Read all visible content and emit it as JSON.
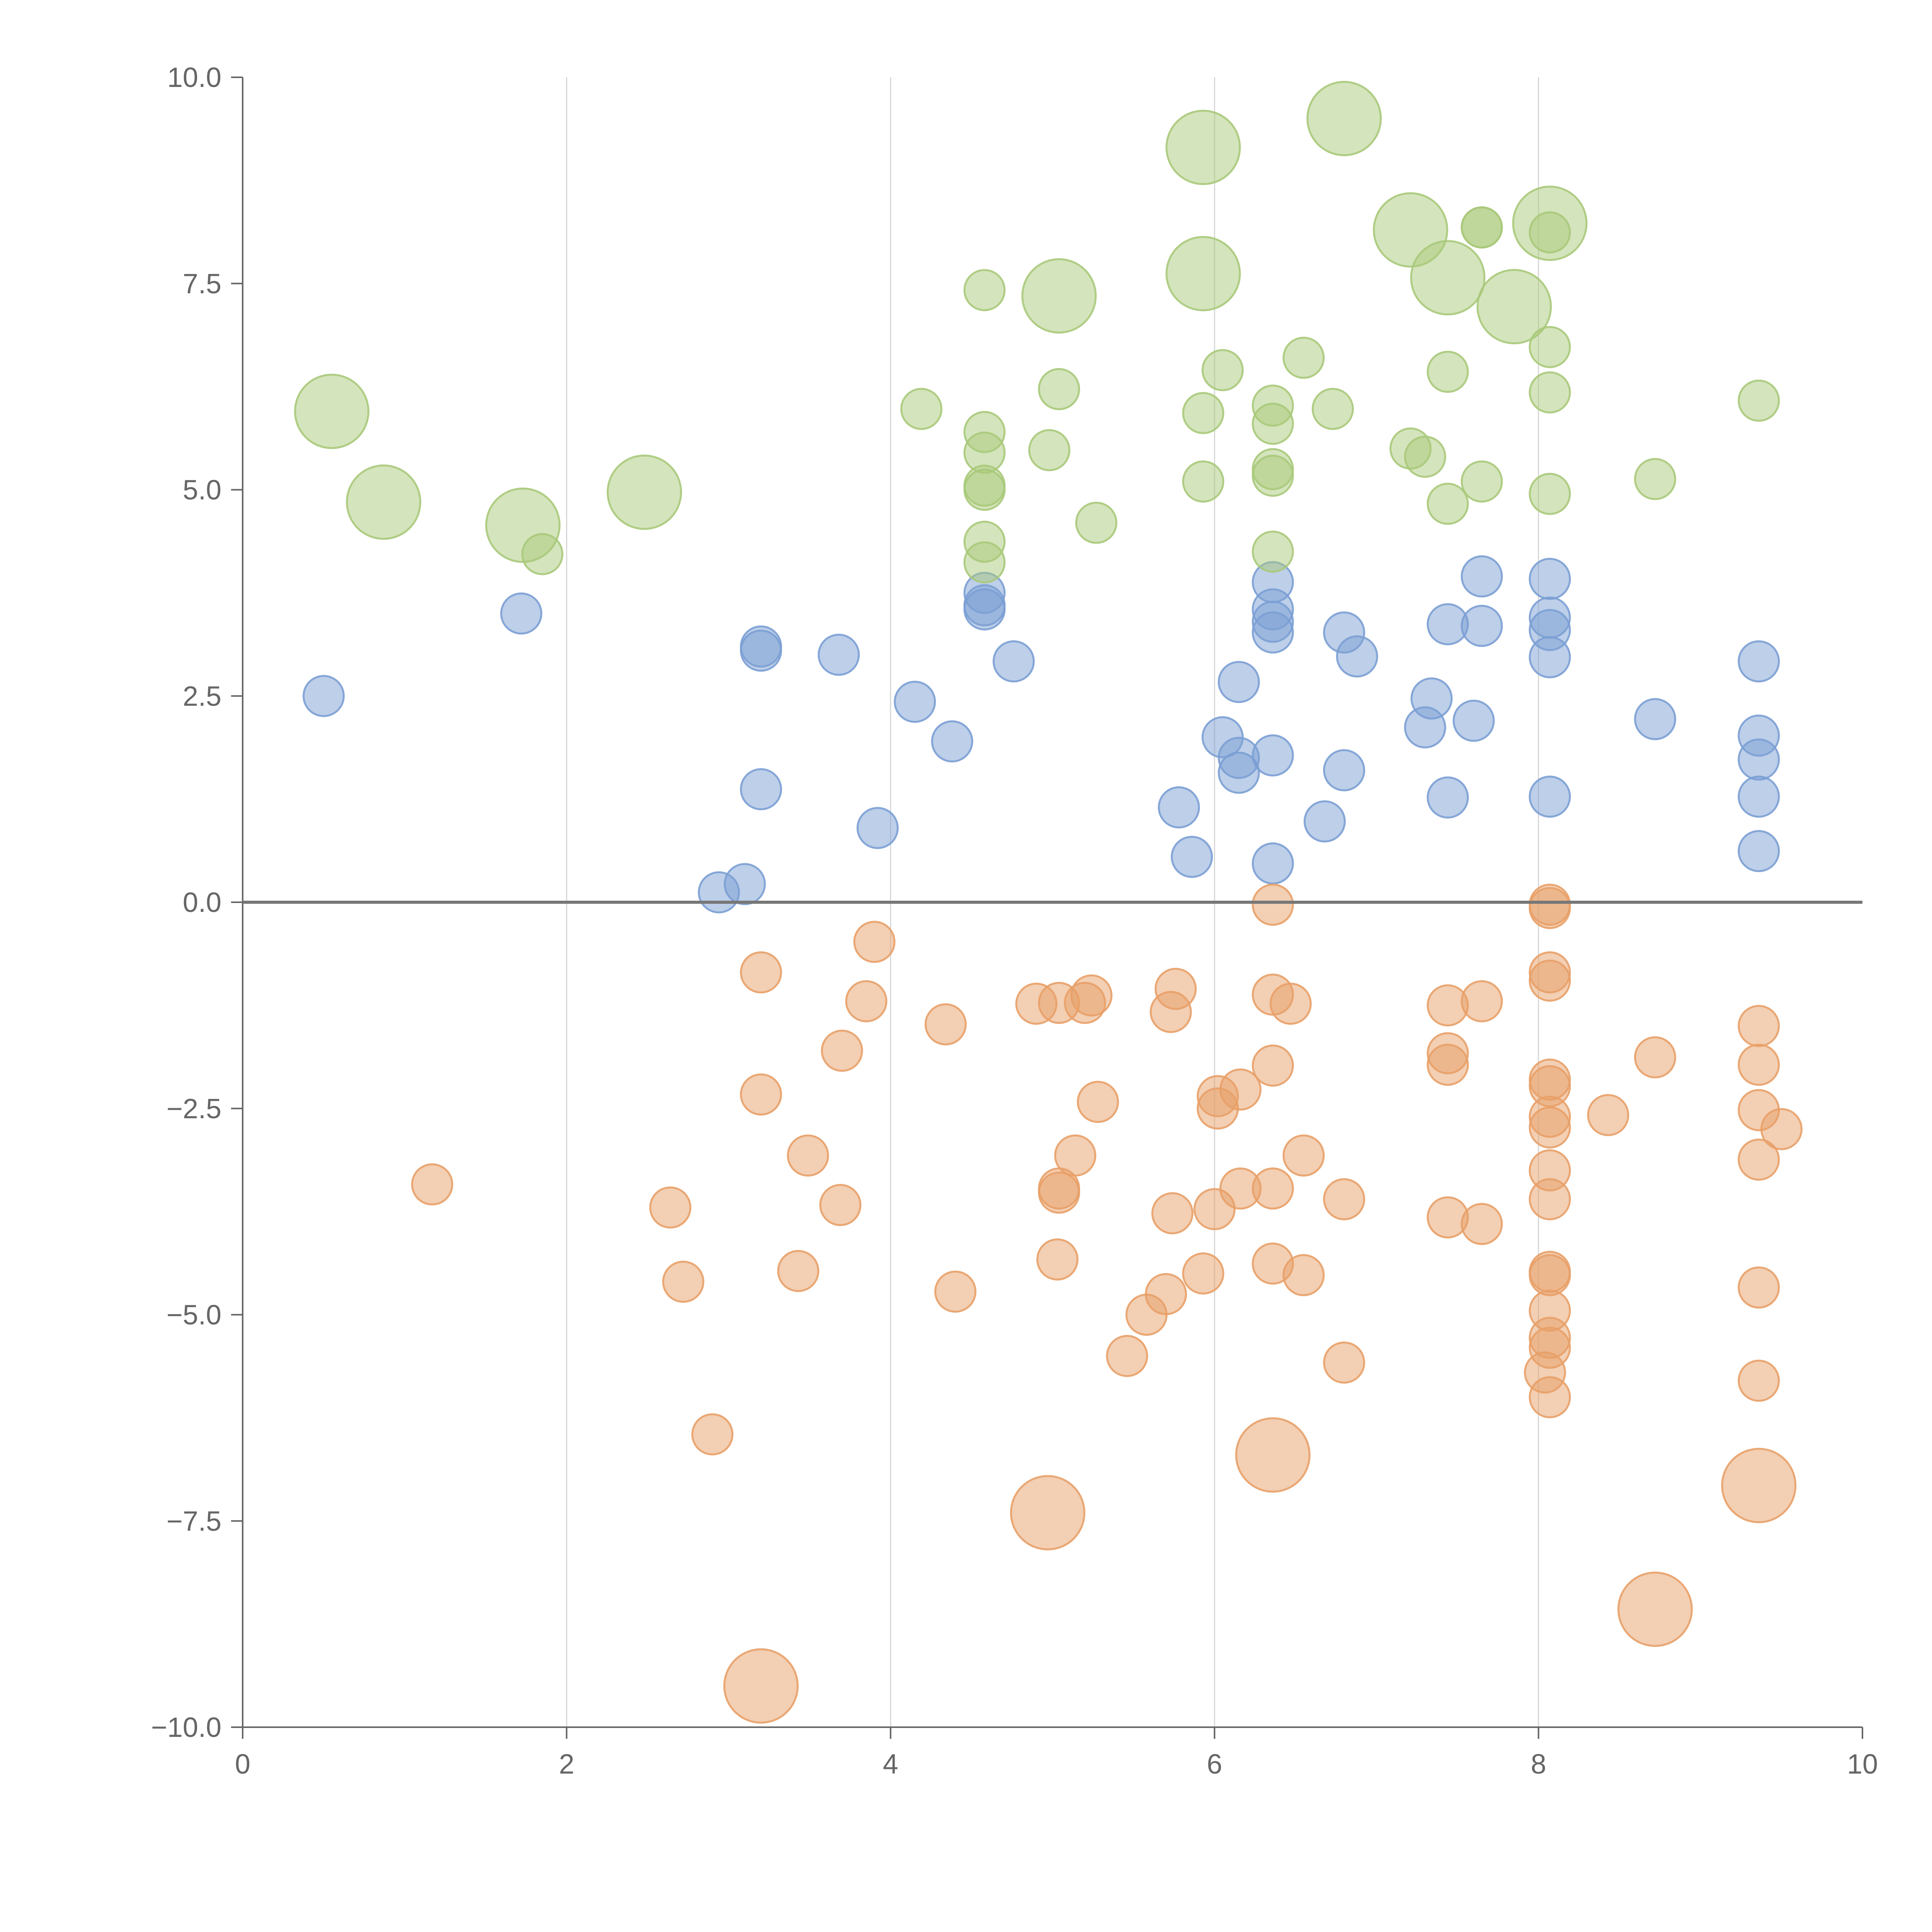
{
  "colors": {
    "blue": "#7b9fd4",
    "orange": "#e8a068",
    "green": "#a9c97a",
    "axis": "#666666",
    "grid": "#d6d6d6"
  },
  "chart_data": {
    "type": "scatter",
    "title": "",
    "xlabel": "",
    "ylabel": "",
    "xlim": [
      0,
      10
    ],
    "ylim": [
      -10,
      10
    ],
    "x_ticks": [
      "0",
      "2",
      "4",
      "6",
      "8",
      "10"
    ],
    "y_ticks": [
      "10.0",
      "7.5",
      "5.0",
      "2.5",
      "0.0",
      "−2.5",
      "−5.0",
      "−7.5",
      "−10.0"
    ],
    "x_grid": [
      2,
      4,
      6,
      8
    ],
    "reference_line_y": 0,
    "series": [
      {
        "name": "blue",
        "color": "#7b9fd4",
        "size": "small",
        "points": [
          [
            0.5,
            2.5
          ],
          [
            1.72,
            3.5
          ],
          [
            2.94,
            0.12
          ],
          [
            3.1,
            0.22
          ],
          [
            3.2,
            3.1
          ],
          [
            3.2,
            3.05
          ],
          [
            3.2,
            1.37
          ],
          [
            3.68,
            3.0
          ],
          [
            3.92,
            0.9
          ],
          [
            4.15,
            2.43
          ],
          [
            4.38,
            1.95
          ],
          [
            4.58,
            3.75
          ],
          [
            4.58,
            3.6
          ],
          [
            4.58,
            3.55
          ],
          [
            4.76,
            2.92
          ],
          [
            5.78,
            1.15
          ],
          [
            5.86,
            0.55
          ],
          [
            6.05,
            2.0
          ],
          [
            6.15,
            1.75
          ],
          [
            6.15,
            1.57
          ],
          [
            6.15,
            2.67
          ],
          [
            6.36,
            3.88
          ],
          [
            6.36,
            3.55
          ],
          [
            6.36,
            3.4
          ],
          [
            6.36,
            3.27
          ],
          [
            6.36,
            1.78
          ],
          [
            6.36,
            0.47
          ],
          [
            6.68,
            0.98
          ],
          [
            6.8,
            3.27
          ],
          [
            6.8,
            1.6
          ],
          [
            6.88,
            2.98
          ],
          [
            7.3,
            2.12
          ],
          [
            7.34,
            2.47
          ],
          [
            7.44,
            3.37
          ],
          [
            7.44,
            1.27
          ],
          [
            7.6,
            2.2
          ],
          [
            7.65,
            3.95
          ],
          [
            7.65,
            3.35
          ],
          [
            8.07,
            3.92
          ],
          [
            8.07,
            3.45
          ],
          [
            8.07,
            3.3
          ],
          [
            8.07,
            2.97
          ],
          [
            8.07,
            1.28
          ],
          [
            8.72,
            2.22
          ],
          [
            9.36,
            2.92
          ],
          [
            9.36,
            2.02
          ],
          [
            9.36,
            1.73
          ],
          [
            9.36,
            1.28
          ],
          [
            9.36,
            0.62
          ]
        ]
      },
      {
        "name": "orange",
        "color": "#e8a068",
        "size": "mixed",
        "points": [
          [
            1.17,
            -3.42,
            1
          ],
          [
            2.64,
            -3.7,
            1
          ],
          [
            2.72,
            -4.6,
            1
          ],
          [
            2.9,
            -6.45,
            1
          ],
          [
            3.2,
            -0.85,
            1
          ],
          [
            3.2,
            -2.33,
            1
          ],
          [
            3.2,
            -9.5,
            2
          ],
          [
            3.43,
            -4.47,
            1
          ],
          [
            3.49,
            -3.07,
            1
          ],
          [
            3.69,
            -3.67,
            1
          ],
          [
            3.7,
            -1.8,
            1
          ],
          [
            3.85,
            -1.2,
            1
          ],
          [
            3.9,
            -0.48,
            1
          ],
          [
            4.34,
            -1.48,
            1
          ],
          [
            4.4,
            -4.72,
            1
          ],
          [
            4.9,
            -1.23,
            1
          ],
          [
            4.97,
            -7.4,
            2
          ],
          [
            5.03,
            -4.33,
            1
          ],
          [
            5.04,
            -1.22,
            1
          ],
          [
            5.04,
            -3.47,
            1
          ],
          [
            5.04,
            -3.52,
            1
          ],
          [
            5.14,
            -3.07,
            1
          ],
          [
            5.2,
            -1.22,
            1
          ],
          [
            5.24,
            -1.13,
            1
          ],
          [
            5.28,
            -2.42,
            1
          ],
          [
            5.46,
            -5.5,
            1
          ],
          [
            5.58,
            -5.0,
            1
          ],
          [
            5.7,
            -4.75,
            1
          ],
          [
            5.73,
            -1.33,
            1
          ],
          [
            5.74,
            -3.77,
            1
          ],
          [
            5.76,
            -1.05,
            1
          ],
          [
            5.93,
            -4.5,
            1
          ],
          [
            6.0,
            -3.72,
            1
          ],
          [
            6.02,
            -2.35,
            1
          ],
          [
            6.02,
            -2.5,
            1
          ],
          [
            6.16,
            -2.27,
            1
          ],
          [
            6.16,
            -3.47,
            1
          ],
          [
            6.36,
            -0.03,
            1
          ],
          [
            6.36,
            -1.12,
            1
          ],
          [
            6.36,
            -1.98,
            1
          ],
          [
            6.36,
            -3.47,
            1
          ],
          [
            6.36,
            -4.38,
            1
          ],
          [
            6.36,
            -6.7,
            2
          ],
          [
            6.47,
            -1.23,
            1
          ],
          [
            6.55,
            -4.52,
            1
          ],
          [
            6.55,
            -3.07,
            1
          ],
          [
            6.8,
            -3.6,
            1
          ],
          [
            6.8,
            -5.58,
            1
          ],
          [
            7.44,
            -1.25,
            1
          ],
          [
            7.44,
            -1.83,
            1
          ],
          [
            7.44,
            -1.97,
            1
          ],
          [
            7.44,
            -3.82,
            1
          ],
          [
            7.65,
            -1.2,
            1
          ],
          [
            7.65,
            -3.9,
            1
          ],
          [
            8.07,
            -0.03,
            1
          ],
          [
            8.07,
            -0.07,
            1
          ],
          [
            8.07,
            -0.85,
            1
          ],
          [
            8.07,
            -0.95,
            1
          ],
          [
            8.07,
            -2.15,
            1
          ],
          [
            8.07,
            -2.23,
            1
          ],
          [
            8.07,
            -2.6,
            1
          ],
          [
            8.07,
            -2.73,
            1
          ],
          [
            8.07,
            -3.25,
            1
          ],
          [
            8.07,
            -3.6,
            1
          ],
          [
            8.07,
            -4.48,
            1
          ],
          [
            8.07,
            -4.52,
            1
          ],
          [
            8.07,
            -4.95,
            1
          ],
          [
            8.07,
            -5.28,
            1
          ],
          [
            8.07,
            -5.4,
            1
          ],
          [
            8.07,
            -6.0,
            1
          ],
          [
            8.04,
            -5.7,
            1
          ],
          [
            8.43,
            -2.58,
            1
          ],
          [
            8.72,
            -1.88,
            1
          ],
          [
            8.72,
            -8.57,
            2
          ],
          [
            9.36,
            -1.5,
            1
          ],
          [
            9.36,
            -1.97,
            1
          ],
          [
            9.36,
            -2.52,
            1
          ],
          [
            9.36,
            -3.12,
            1
          ],
          [
            9.36,
            -4.67,
            1
          ],
          [
            9.36,
            -5.8,
            1
          ],
          [
            9.36,
            -7.07,
            2
          ],
          [
            9.5,
            -2.75,
            1
          ]
        ]
      },
      {
        "name": "green",
        "color": "#a9c97a",
        "size": "mixed",
        "points": [
          [
            0.55,
            5.95,
            2
          ],
          [
            0.87,
            4.85,
            2
          ],
          [
            1.73,
            4.57,
            2
          ],
          [
            1.85,
            4.22,
            1
          ],
          [
            2.48,
            4.97,
            2
          ],
          [
            4.19,
            5.98,
            1
          ],
          [
            4.58,
            7.42,
            1
          ],
          [
            4.58,
            5.7,
            1
          ],
          [
            4.58,
            5.45,
            1
          ],
          [
            4.58,
            5.05,
            1
          ],
          [
            4.58,
            5.0,
            1
          ],
          [
            4.58,
            4.37,
            1
          ],
          [
            4.58,
            4.12,
            1
          ],
          [
            4.98,
            5.48,
            1
          ],
          [
            5.04,
            7.35,
            2
          ],
          [
            5.04,
            6.22,
            1
          ],
          [
            5.27,
            4.6,
            1
          ],
          [
            5.93,
            9.15,
            2
          ],
          [
            5.93,
            7.62,
            2
          ],
          [
            5.93,
            5.93,
            1
          ],
          [
            5.93,
            5.1,
            1
          ],
          [
            6.05,
            6.45,
            1
          ],
          [
            6.36,
            6.02,
            1
          ],
          [
            6.36,
            5.8,
            1
          ],
          [
            6.36,
            5.25,
            1
          ],
          [
            6.36,
            5.17,
            1
          ],
          [
            6.36,
            4.25,
            1
          ],
          [
            6.55,
            6.6,
            1
          ],
          [
            6.73,
            5.98,
            1
          ],
          [
            6.8,
            9.5,
            2
          ],
          [
            7.21,
            8.15,
            2
          ],
          [
            7.21,
            5.5,
            1
          ],
          [
            7.3,
            5.4,
            1
          ],
          [
            7.44,
            7.57,
            2
          ],
          [
            7.44,
            6.43,
            1
          ],
          [
            7.44,
            4.83,
            1
          ],
          [
            7.65,
            8.18,
            1
          ],
          [
            7.65,
            8.18,
            1
          ],
          [
            7.65,
            5.1,
            1
          ],
          [
            7.85,
            7.22,
            2
          ],
          [
            8.07,
            8.23,
            2
          ],
          [
            8.07,
            8.12,
            1
          ],
          [
            8.07,
            6.73,
            1
          ],
          [
            8.07,
            6.18,
            1
          ],
          [
            8.07,
            4.95,
            1
          ],
          [
            8.72,
            5.13,
            1
          ],
          [
            9.36,
            6.08,
            1
          ]
        ]
      }
    ]
  }
}
